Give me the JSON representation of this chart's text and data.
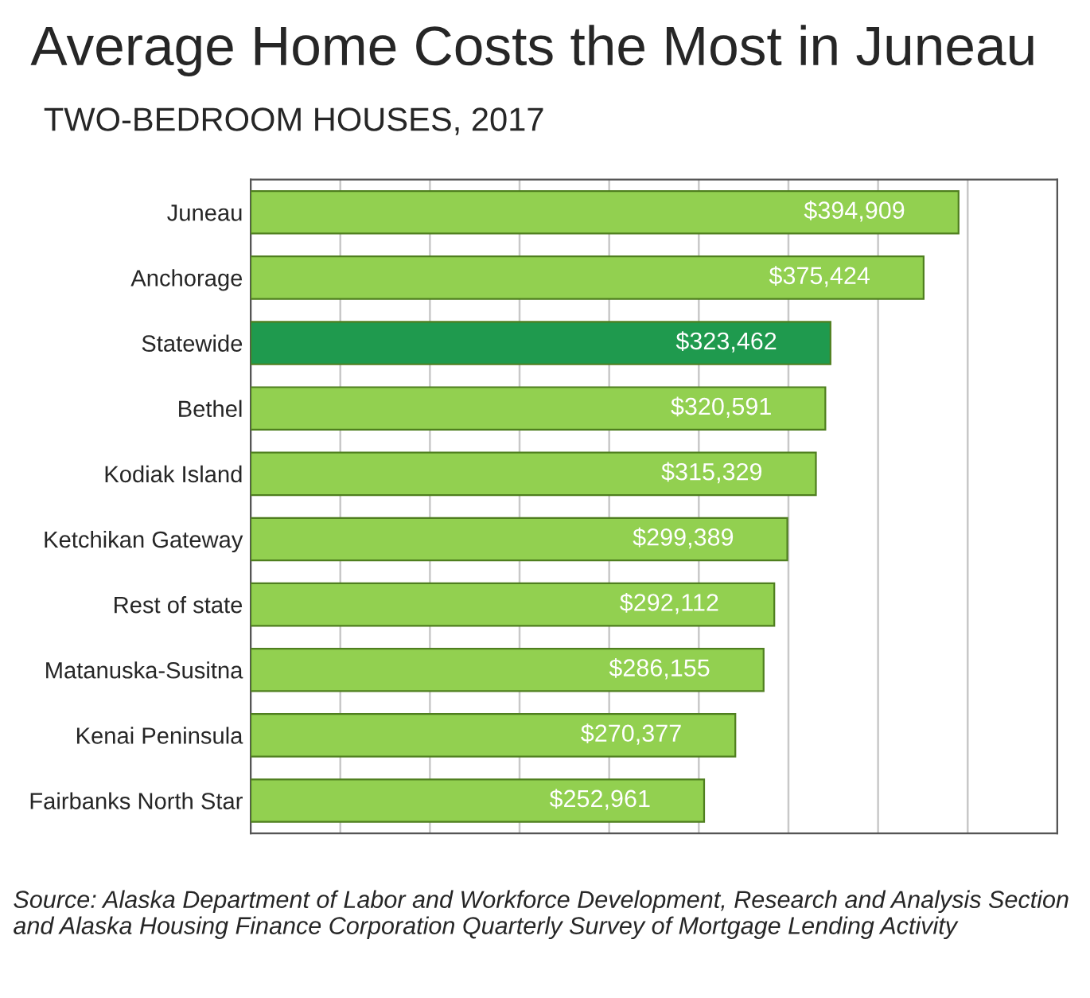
{
  "chart_data": {
    "type": "bar",
    "orientation": "horizontal",
    "title": "Average Home Costs the Most in Juneau",
    "subtitle": "TWO-BEDROOM HOUSES, 2017",
    "categories": [
      "Juneau",
      "Anchorage",
      "Statewide",
      "Bethel",
      "Kodiak Island",
      "Ketchikan Gateway",
      "Rest of state",
      "Matanuska-Susitna",
      "Kenai Peninsula",
      "Fairbanks North Star"
    ],
    "values": [
      394909,
      375424,
      323462,
      320591,
      315329,
      299389,
      292112,
      286155,
      270377,
      252961
    ],
    "colors": [
      "#92d050",
      "#92d050",
      "#1f9a4e",
      "#92d050",
      "#92d050",
      "#92d050",
      "#92d050",
      "#92d050",
      "#92d050",
      "#92d050"
    ],
    "value_labels": [
      "$394,909",
      "$375,424",
      "$323,462",
      "$320,591",
      "$315,329",
      "$299,389",
      "$292,112",
      "$286,155",
      "$270,377",
      "$252,961"
    ],
    "xlim": [
      0,
      450000
    ],
    "xticks": [
      {
        "value": 0,
        "label": null
      },
      {
        "value": 50000,
        "label": null
      },
      {
        "value": 100000,
        "label": null
      },
      {
        "value": 150000,
        "label": null
      },
      {
        "value": 200000,
        "label": null
      },
      {
        "value": 250000,
        "label": null
      },
      {
        "value": 300000,
        "label": null
      },
      {
        "value": 350000,
        "label": null
      },
      {
        "value": 400000,
        "label": null
      },
      {
        "value": 450000,
        "label": null
      }
    ],
    "tick_labels": "y",
    "grid": "x",
    "annotations": [
      "Source: Alaska Department of Labor and Workforce Development, Research and Analysis Section and Alaska Housing Finance Corporation Quarterly Survey of Mortgage Lending Activity"
    ]
  }
}
